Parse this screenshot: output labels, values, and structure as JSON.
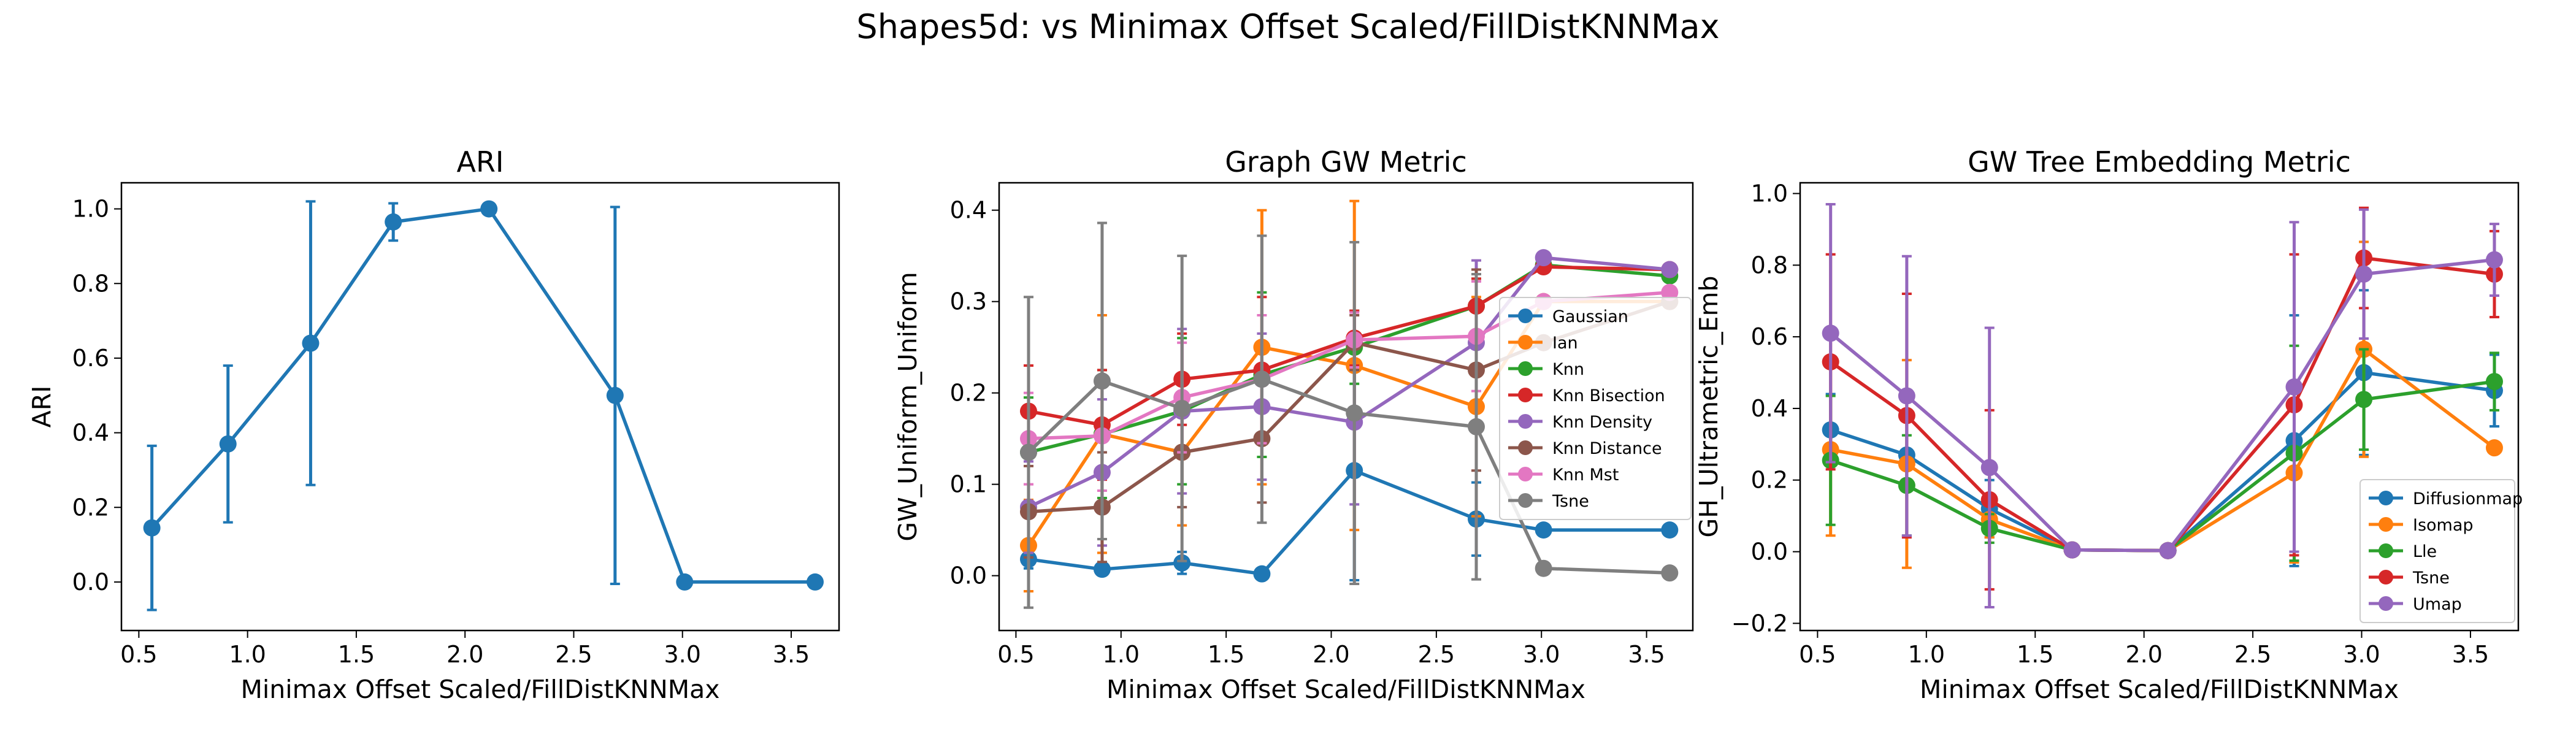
{
  "suptitle": "Shapes5d: vs Minimax Offset Scaled/FillDistKNNMax",
  "chart_data": [
    {
      "type": "line",
      "title": "ARI",
      "xlabel": "Minimax Offset Scaled/FillDistKNNMax",
      "ylabel": "ARI",
      "xlim": [
        0.42,
        3.72
      ],
      "ylim": [
        -0.13,
        1.07
      ],
      "xticks": [
        "0.5",
        "1.0",
        "1.5",
        "2.0",
        "2.5",
        "3.0",
        "3.5"
      ],
      "yticks": [
        "0.0",
        "0.2",
        "0.4",
        "0.6",
        "0.8",
        "1.0"
      ],
      "x": [
        0.56,
        0.91,
        1.29,
        1.67,
        2.11,
        2.69,
        3.01,
        3.61
      ],
      "legend": "none",
      "series": [
        {
          "color": "#1f77b4",
          "values": [
            0.145,
            0.37,
            0.64,
            0.965,
            1.0,
            0.5,
            0.0,
            0.0
          ],
          "err": [
            0.22,
            0.21,
            0.38,
            0.05,
            0.0,
            0.505,
            0.0,
            0.0
          ]
        }
      ]
    },
    {
      "type": "line",
      "title": "Graph GW Metric",
      "xlabel": "Minimax Offset Scaled/FillDistKNNMax",
      "ylabel": "GW_Uniform_Uniform",
      "xlim": [
        0.42,
        3.72
      ],
      "ylim": [
        -0.06,
        0.43
      ],
      "xticks": [
        "0.5",
        "1.0",
        "1.5",
        "2.0",
        "2.5",
        "3.0",
        "3.5"
      ],
      "yticks": [
        "0.0",
        "0.1",
        "0.2",
        "0.3",
        "0.4"
      ],
      "x": [
        0.56,
        0.91,
        1.29,
        1.67,
        2.11,
        2.69,
        3.01,
        3.61
      ],
      "legend": "center-right",
      "series": [
        {
          "name": "Gaussian",
          "color": "#1f77b4",
          "values": [
            0.018,
            0.007,
            0.014,
            0.002,
            0.115,
            0.062,
            0.05,
            0.05
          ],
          "err": [
            0.01,
            0.005,
            0.012,
            0.0,
            0.12,
            0.04,
            0.0,
            0.0
          ]
        },
        {
          "name": "Ian",
          "color": "#ff7f0e",
          "values": [
            0.033,
            0.155,
            0.135,
            0.25,
            0.23,
            0.185,
            0.3,
            0.3
          ],
          "err": [
            0.05,
            0.13,
            0.08,
            0.15,
            0.18,
            0.12,
            0.0,
            0.0
          ]
        },
        {
          "name": "Knn",
          "color": "#2ca02c",
          "values": [
            0.135,
            0.155,
            0.18,
            0.22,
            0.25,
            0.295,
            0.34,
            0.328
          ],
          "err": [
            0.06,
            0.07,
            0.08,
            0.09,
            0.04,
            0.03,
            0.0,
            0.0
          ]
        },
        {
          "name": "Knn Bisection",
          "color": "#d62728",
          "values": [
            0.18,
            0.165,
            0.215,
            0.225,
            0.26,
            0.295,
            0.338,
            0.335
          ],
          "err": [
            0.05,
            0.06,
            0.05,
            0.08,
            0.03,
            0.03,
            0.0,
            0.0
          ]
        },
        {
          "name": "Knn Density",
          "color": "#9467bd",
          "values": [
            0.075,
            0.113,
            0.18,
            0.185,
            0.168,
            0.255,
            0.348,
            0.335
          ],
          "err": [
            0.05,
            0.08,
            0.09,
            0.08,
            0.09,
            0.09,
            0.0,
            0.0
          ]
        },
        {
          "name": "Knn Distance",
          "color": "#8c564b",
          "values": [
            0.07,
            0.075,
            0.135,
            0.15,
            0.255,
            0.225,
            0.255,
            0.3
          ],
          "err": [
            0.05,
            0.06,
            0.06,
            0.07,
            0.03,
            0.11,
            0.0,
            0.0
          ]
        },
        {
          "name": "Knn Mst",
          "color": "#e377c2",
          "values": [
            0.15,
            0.153,
            0.195,
            0.215,
            0.258,
            0.262,
            0.3,
            0.31
          ],
          "err": [
            0.05,
            0.06,
            0.06,
            0.07,
            0.03,
            0.06,
            0.0,
            0.0
          ]
        },
        {
          "name": "Tsne",
          "color": "#7f7f7f",
          "values": [
            0.135,
            0.213,
            0.183,
            0.215,
            0.178,
            0.163,
            0.008,
            0.003
          ],
          "err": [
            0.17,
            0.173,
            0.167,
            0.157,
            0.187,
            0.167,
            0.0,
            0.0
          ]
        }
      ]
    },
    {
      "type": "line",
      "title": "GW Tree Embedding Metric",
      "xlabel": "Minimax Offset Scaled/FillDistKNNMax",
      "ylabel": "GH_Ultrametric_Emb",
      "xlim": [
        0.42,
        3.72
      ],
      "ylim": [
        -0.22,
        1.03
      ],
      "xticks": [
        "0.5",
        "1.0",
        "1.5",
        "2.0",
        "2.5",
        "3.0",
        "3.5"
      ],
      "yticks": [
        "−0.2",
        "0.0",
        "0.2",
        "0.4",
        "0.6",
        "0.8",
        "1.0"
      ],
      "x": [
        0.56,
        0.91,
        1.29,
        1.67,
        2.11,
        2.69,
        3.01,
        3.61
      ],
      "legend": "lower-right",
      "series": [
        {
          "name": "Diffusionmap",
          "color": "#1f77b4",
          "values": [
            0.34,
            0.27,
            0.12,
            0.005,
            0.003,
            0.31,
            0.5,
            0.45
          ],
          "err": [
            0.1,
            0.1,
            0.08,
            0.0,
            0.0,
            0.35,
            0.23,
            0.1
          ]
        },
        {
          "name": "Isomap",
          "color": "#ff7f0e",
          "values": [
            0.285,
            0.245,
            0.09,
            0.005,
            0.003,
            0.22,
            0.565,
            0.29
          ],
          "err": [
            0.24,
            0.29,
            0.05,
            0.0,
            0.0,
            0.25,
            0.3,
            0.0
          ]
        },
        {
          "name": "Lle",
          "color": "#2ca02c",
          "values": [
            0.255,
            0.185,
            0.065,
            0.005,
            0.003,
            0.275,
            0.425,
            0.475
          ],
          "err": [
            0.18,
            0.14,
            0.04,
            0.0,
            0.0,
            0.3,
            0.14,
            0.08
          ]
        },
        {
          "name": "Tsne",
          "color": "#d62728",
          "values": [
            0.53,
            0.38,
            0.145,
            0.005,
            0.003,
            0.41,
            0.82,
            0.775
          ],
          "err": [
            0.3,
            0.34,
            0.25,
            0.0,
            0.0,
            0.42,
            0.14,
            0.12
          ]
        },
        {
          "name": "Umap",
          "color": "#9467bd",
          "values": [
            0.61,
            0.435,
            0.235,
            0.005,
            0.003,
            0.46,
            0.775,
            0.815
          ],
          "err": [
            0.36,
            0.39,
            0.39,
            0.0,
            0.0,
            0.46,
            0.18,
            0.1
          ]
        }
      ]
    }
  ]
}
